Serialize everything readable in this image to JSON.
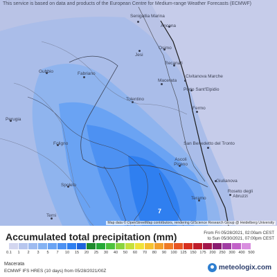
{
  "map": {
    "banner": "This service is based on data and products of the European Centre for Medium-range Weather Forecasts (ECMWF)",
    "attribution": "Map data © OpenStreetMap contributors, rendering GIScience Research Group @ Heidelberg University",
    "cities": [
      {
        "name": "Senigallia Marina",
        "label": "Senigallia Marina"
      },
      {
        "name": "Ancona",
        "label": "Ancona"
      },
      {
        "name": "Osimo",
        "label": "Osimo"
      },
      {
        "name": "Jesi",
        "label": "Jesi"
      },
      {
        "name": "Recanati",
        "label": "Recanati"
      },
      {
        "name": "Civitanova Marche",
        "label": "Civitanova Marche"
      },
      {
        "name": "Porto Sant'Elpidio",
        "label": "Porto Sant'Elpidio"
      },
      {
        "name": "Macerata",
        "label": "Macerata"
      },
      {
        "name": "Fabriano",
        "label": "Fabriano"
      },
      {
        "name": "Gubbio",
        "label": "Gubbio"
      },
      {
        "name": "Tolentino",
        "label": "Tolentino"
      },
      {
        "name": "Fermo",
        "label": "Fermo"
      },
      {
        "name": "Perugia",
        "label": "Perugia"
      },
      {
        "name": "Foligno",
        "label": "Foligno"
      },
      {
        "name": "San Benedetto del Tronto",
        "label": "San Benedetto del Tronto"
      },
      {
        "name": "Ascoli Piceno",
        "label": "Ascoli Piceno"
      },
      {
        "name": "Giulianova",
        "label": "Giulianova"
      },
      {
        "name": "Spoleto",
        "label": "Spoleto"
      },
      {
        "name": "Teramo",
        "label": "Teramo"
      },
      {
        "name": "Roseto degli Abruzzi",
        "label": "Roseto degli Abruzzi"
      },
      {
        "name": "Terni",
        "label": "Terni"
      }
    ],
    "value_label": "7"
  },
  "legend": {
    "title": "Accumulated total precipitation (mm)",
    "from": "From Fri 05/28/2021, 02:00am CEST",
    "to": "to Sun 05/30/2021, 07:00pm CEST",
    "ticks": [
      "0.1",
      "1",
      "2",
      "3",
      "5",
      "7",
      "10",
      "15",
      "20",
      "25",
      "30",
      "40",
      "50",
      "60",
      "70",
      "80",
      "90",
      "100",
      "125",
      "150",
      "175",
      "200",
      "250",
      "300",
      "400",
      "500"
    ],
    "colors": [
      "#d3d6ef",
      "#b7c6ee",
      "#9ebbf0",
      "#85b2f2",
      "#6aa3f3",
      "#4d91f2",
      "#2f7ff0",
      "#1e64dc",
      "#1d8a2c",
      "#25a836",
      "#4dc23c",
      "#8ad43e",
      "#c6e03c",
      "#f0e23a",
      "#f5c232",
      "#f3a02c",
      "#ef7b26",
      "#e85622",
      "#d8301e",
      "#c01d2a",
      "#a3164a",
      "#8a1c70",
      "#a13ea3",
      "#c262c8",
      "#d98fdf"
    ]
  },
  "location": "Macerata",
  "model": "ECMWF IFS HRES (10 days) from 05/28/2021/00Z",
  "brand": "meteologix.com"
}
